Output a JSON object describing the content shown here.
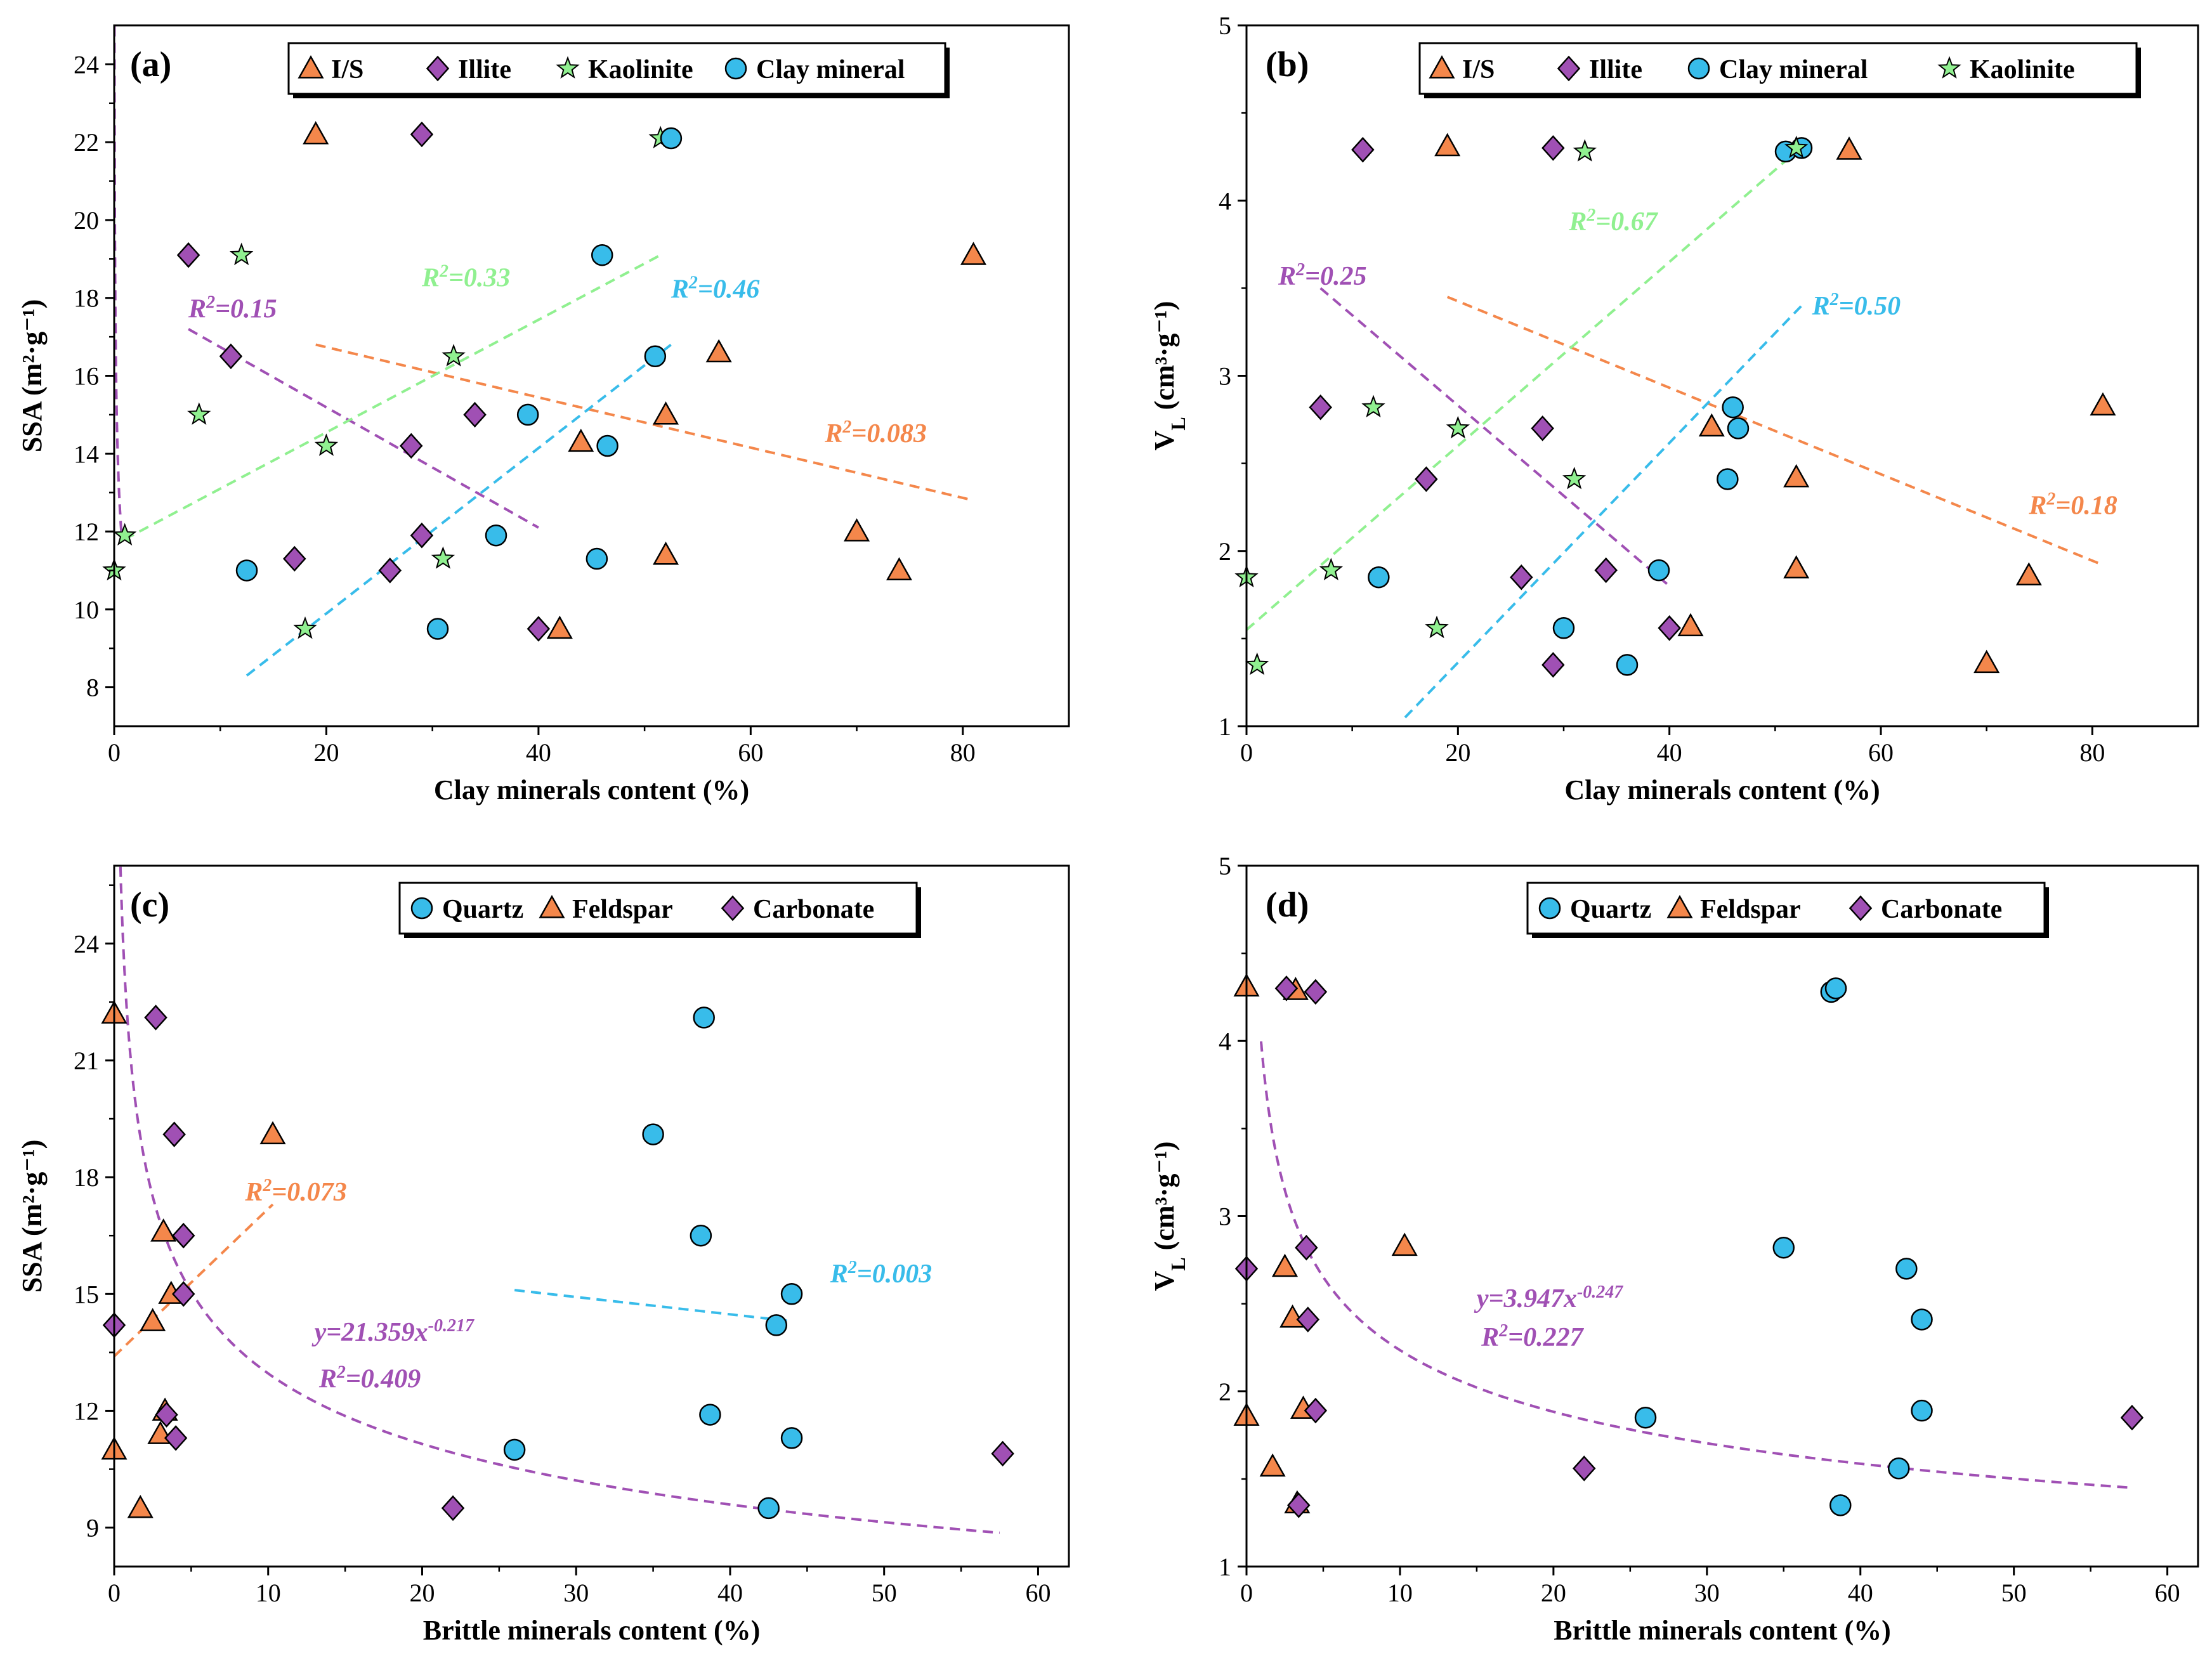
{
  "chart_data": [
    {
      "panel": "(a)",
      "type": "scatter",
      "xlabel": "Clay minerals content (%)",
      "ylabel_main": "SSA",
      "ylabel_unit": "(m²·g⁻¹)",
      "xlim": [
        0,
        90
      ],
      "ylim": [
        7,
        25
      ],
      "xticks": [
        0,
        20,
        40,
        60,
        80
      ],
      "xtick_labels": [
        "0",
        "20",
        "40",
        "60",
        "80"
      ],
      "yticks": [
        8,
        10,
        12,
        14,
        16,
        18,
        20,
        22,
        24
      ],
      "ytick_labels": [
        "8",
        "10",
        "12",
        "14",
        "16",
        "18",
        "20",
        "22",
        "24"
      ],
      "legend": [
        {
          "name": "I/S",
          "marker": "triangle",
          "color": "#f4874b"
        },
        {
          "name": "Illite",
          "marker": "diamond",
          "color": "#a050b4"
        },
        {
          "name": "Kaolinite",
          "marker": "star",
          "color": "#90f090"
        },
        {
          "name": "Clay mineral",
          "marker": "circle",
          "color": "#38bcea"
        }
      ],
      "series": [
        {
          "name": "I/S",
          "marker": "triangle",
          "color": "#f4874b",
          "x": [
            19,
            81,
            52,
            57,
            44,
            70,
            74,
            52,
            42
          ],
          "y": [
            22.2,
            19.1,
            15.0,
            16.6,
            14.3,
            12.0,
            11.0,
            11.4,
            9.5
          ]
        },
        {
          "name": "Illite",
          "marker": "diamond",
          "color": "#a050b4",
          "x": [
            29,
            7,
            11,
            34,
            28,
            29,
            17,
            26,
            40
          ],
          "y": [
            22.2,
            19.1,
            16.5,
            15.0,
            14.2,
            11.9,
            11.3,
            11.0,
            9.5
          ]
        },
        {
          "name": "Kaolinite",
          "marker": "star",
          "color": "#90f090",
          "x": [
            51.5,
            12,
            32,
            8,
            20,
            1,
            31,
            18,
            0
          ],
          "y": [
            22.1,
            19.1,
            16.5,
            15.0,
            14.2,
            11.9,
            11.3,
            9.5,
            11.0
          ]
        },
        {
          "name": "Clay mineral",
          "marker": "circle",
          "color": "#38bcea",
          "x": [
            52.5,
            46,
            51,
            39,
            46.5,
            36,
            45.5,
            12.5,
            30.5
          ],
          "y": [
            22.1,
            19.1,
            16.5,
            15.0,
            14.2,
            11.9,
            11.3,
            11.0,
            9.5
          ]
        }
      ],
      "fits": [
        {
          "kind": "line",
          "color": "#f4874b",
          "x": [
            19,
            81
          ],
          "y": [
            16.8,
            12.8
          ]
        },
        {
          "kind": "line",
          "color": "#a050b4",
          "x": [
            7,
            40
          ],
          "y": [
            17.2,
            12.1
          ]
        },
        {
          "kind": "line",
          "color": "#90f090",
          "x": [
            1,
            51.5
          ],
          "y": [
            11.8,
            19.1
          ]
        },
        {
          "kind": "line",
          "color": "#38bcea",
          "x": [
            12.5,
            52.5
          ],
          "y": [
            8.3,
            16.8
          ]
        },
        {
          "kind": "power",
          "color": "#a050b4",
          "a": 11.0,
          "b": -0.217,
          "x_from": 0.02,
          "x_to": 0.7,
          "y_max": 25
        }
      ],
      "annotations": [
        {
          "pre": "R",
          "sup": "2",
          "post": "=0.15",
          "color": "#a050b4",
          "x": 7,
          "y": 17.5
        },
        {
          "pre": "R",
          "sup": "2",
          "post": "=0.33",
          "color": "#90f090",
          "x": 29,
          "y": 18.3
        },
        {
          "pre": "R",
          "sup": "2",
          "post": "=0.46",
          "color": "#38bcea",
          "x": 52.5,
          "y": 18.0
        },
        {
          "pre": "R",
          "sup": "2",
          "post": "=0.083",
          "color": "#f4874b",
          "x": 67,
          "y": 14.3
        }
      ]
    },
    {
      "panel": "(b)",
      "type": "scatter",
      "xlabel": "Clay minerals content (%)",
      "ylabel_main": "V",
      "ylabel_sub": "L",
      "ylabel_unit": "(cm³·g⁻¹)",
      "xlim": [
        0,
        90
      ],
      "ylim": [
        1,
        5
      ],
      "xticks": [
        0,
        20,
        40,
        60,
        80
      ],
      "xtick_labels": [
        "0",
        "20",
        "40",
        "60",
        "80"
      ],
      "yticks": [
        1,
        2,
        3,
        4,
        5
      ],
      "ytick_labels": [
        "1",
        "2",
        "3",
        "4",
        "5"
      ],
      "legend": [
        {
          "name": "I/S",
          "marker": "triangle",
          "color": "#f4874b"
        },
        {
          "name": "Illite",
          "marker": "diamond",
          "color": "#a050b4"
        },
        {
          "name": "Clay mineral",
          "marker": "circle",
          "color": "#38bcea"
        },
        {
          "name": "Kaolinite",
          "marker": "star",
          "color": "#90f090"
        }
      ],
      "series": [
        {
          "name": "I/S",
          "marker": "triangle",
          "color": "#f4874b",
          "x": [
            19,
            57,
            81,
            44,
            52,
            52,
            74,
            42,
            70
          ],
          "y": [
            4.31,
            4.29,
            2.83,
            2.71,
            2.42,
            1.9,
            1.86,
            1.57,
            1.36
          ]
        },
        {
          "name": "Illite",
          "marker": "diamond",
          "color": "#a050b4",
          "x": [
            11,
            29,
            7,
            28,
            17,
            34,
            26,
            40,
            29
          ],
          "y": [
            4.29,
            4.3,
            2.82,
            2.7,
            2.41,
            1.89,
            1.85,
            1.56,
            1.35
          ]
        },
        {
          "name": "Clay mineral",
          "marker": "circle",
          "color": "#38bcea",
          "x": [
            51,
            52.5,
            46,
            46.5,
            45.5,
            39,
            12.5,
            30,
            36
          ],
          "y": [
            4.28,
            4.3,
            2.82,
            2.7,
            2.41,
            1.89,
            1.85,
            1.56,
            1.35
          ]
        },
        {
          "name": "Kaolinite",
          "marker": "star",
          "color": "#90f090",
          "x": [
            52,
            32,
            12,
            20,
            31,
            8,
            0,
            18,
            1
          ],
          "y": [
            4.3,
            4.28,
            2.82,
            2.7,
            2.41,
            1.89,
            1.85,
            1.56,
            1.35
          ]
        }
      ],
      "fits": [
        {
          "kind": "line",
          "color": "#f4874b",
          "x": [
            19,
            81
          ],
          "y": [
            3.45,
            1.92
          ]
        },
        {
          "kind": "line",
          "color": "#a050b4",
          "x": [
            7,
            40
          ],
          "y": [
            3.5,
            1.8
          ]
        },
        {
          "kind": "line",
          "color": "#90f090",
          "x": [
            0,
            52
          ],
          "y": [
            1.55,
            4.28
          ]
        },
        {
          "kind": "line",
          "color": "#38bcea",
          "x": [
            15,
            52.5
          ],
          "y": [
            1.05,
            3.4
          ]
        }
      ],
      "annotations": [
        {
          "pre": "R",
          "sup": "2",
          "post": "=0.25",
          "color": "#a050b4",
          "x": 3,
          "y": 3.52
        },
        {
          "pre": "R",
          "sup": "2",
          "post": "=0.67",
          "color": "#90f090",
          "x": 30.5,
          "y": 3.83
        },
        {
          "pre": "R",
          "sup": "2",
          "post": "=0.50",
          "color": "#38bcea",
          "x": 53.5,
          "y": 3.35
        },
        {
          "pre": "R",
          "sup": "2",
          "post": "=0.18",
          "color": "#f4874b",
          "x": 74,
          "y": 2.21
        }
      ]
    },
    {
      "panel": "(c)",
      "type": "scatter",
      "xlabel": "Brittle minerals content (%)",
      "ylabel_main": "SSA",
      "ylabel_unit": "(m²·g⁻¹)",
      "xlim": [
        0,
        62
      ],
      "ylim": [
        8,
        26
      ],
      "xticks": [
        0,
        10,
        20,
        30,
        40,
        50,
        60
      ],
      "xtick_labels": [
        "0",
        "10",
        "20",
        "30",
        "40",
        "50",
        "60"
      ],
      "yticks": [
        9,
        12,
        15,
        18,
        21,
        24
      ],
      "ytick_labels": [
        "9",
        "12",
        "15",
        "18",
        "21",
        "24"
      ],
      "legend": [
        {
          "name": "Quartz",
          "marker": "circle",
          "color": "#38bcea"
        },
        {
          "name": "Feldspar",
          "marker": "triangle",
          "color": "#f4874b"
        },
        {
          "name": "Carbonate",
          "marker": "diamond",
          "color": "#a050b4"
        }
      ],
      "series": [
        {
          "name": "Quartz",
          "marker": "circle",
          "color": "#38bcea",
          "x": [
            38.3,
            35,
            38.1,
            44,
            43,
            38.7,
            44,
            26,
            42.5
          ],
          "y": [
            22.1,
            19.1,
            16.5,
            15.0,
            14.2,
            11.9,
            11.3,
            11.0,
            9.5
          ]
        },
        {
          "name": "Feldspar",
          "marker": "triangle",
          "color": "#f4874b",
          "x": [
            0,
            10.3,
            3.2,
            3.7,
            2.5,
            3.3,
            3.0,
            0,
            1.7
          ],
          "y": [
            22.2,
            19.1,
            16.6,
            15.0,
            14.3,
            12.0,
            11.4,
            11.0,
            9.5
          ]
        },
        {
          "name": "Carbonate",
          "marker": "diamond",
          "color": "#a050b4",
          "x": [
            2.7,
            3.9,
            4.5,
            4.5,
            0,
            3.4,
            4.0,
            57.7,
            22
          ],
          "y": [
            22.1,
            19.1,
            16.5,
            15.0,
            14.2,
            11.9,
            11.3,
            10.9,
            9.5
          ]
        }
      ],
      "fits": [
        {
          "kind": "line",
          "color": "#f4874b",
          "x": [
            0,
            10.3
          ],
          "y": [
            13.4,
            17.3
          ]
        },
        {
          "kind": "line",
          "color": "#38bcea",
          "x": [
            26,
            44
          ],
          "y": [
            15.1,
            14.3
          ]
        },
        {
          "kind": "power",
          "color": "#a050b4",
          "a": 21.359,
          "b": -0.217,
          "x_from": 0.12,
          "x_to": 57.5,
          "y_max": 26
        }
      ],
      "annotations": [
        {
          "pre": "R",
          "sup": "2",
          "post": "=0.073",
          "color": "#f4874b",
          "x": 8.5,
          "y": 17.4
        },
        {
          "pre": "R",
          "sup": "2",
          "post": "=0.003",
          "color": "#38bcea",
          "x": 46.5,
          "y": 15.3
        },
        {
          "pre": "y=21.359x",
          "sup": "-0.217",
          "post": "",
          "color": "#a050b4",
          "x": 13,
          "y": 13.8
        },
        {
          "pre": "R",
          "sup": "2",
          "post": "=0.409",
          "color": "#a050b4",
          "x": 13.3,
          "y": 12.6
        }
      ]
    },
    {
      "panel": "(d)",
      "type": "scatter",
      "xlabel": "Brittle  minerals content (%)",
      "ylabel_main": "V",
      "ylabel_sub": "L",
      "ylabel_unit": "(cm³·g⁻¹)",
      "xlim": [
        0,
        62
      ],
      "ylim": [
        1,
        5
      ],
      "xticks": [
        0,
        10,
        20,
        30,
        40,
        50,
        60
      ],
      "xtick_labels": [
        "0",
        "10",
        "20",
        "30",
        "40",
        "50",
        "60"
      ],
      "yticks": [
        1,
        2,
        3,
        4,
        5
      ],
      "ytick_labels": [
        "1",
        "2",
        "3",
        "4",
        "5"
      ],
      "legend": [
        {
          "name": "Quartz",
          "marker": "circle",
          "color": "#38bcea"
        },
        {
          "name": "Feldspar",
          "marker": "triangle",
          "color": "#f4874b"
        },
        {
          "name": "Carbonate",
          "marker": "diamond",
          "color": "#a050b4"
        }
      ],
      "series": [
        {
          "name": "Quartz",
          "marker": "circle",
          "color": "#38bcea",
          "x": [
            38.1,
            38.4,
            35,
            43,
            44,
            44,
            26,
            42.5,
            38.7
          ],
          "y": [
            4.28,
            4.3,
            2.82,
            2.7,
            2.41,
            1.89,
            1.85,
            1.56,
            1.35
          ]
        },
        {
          "name": "Feldspar",
          "marker": "triangle",
          "color": "#f4874b",
          "x": [
            0,
            3.2,
            10.3,
            2.5,
            3.0,
            3.7,
            0,
            1.7,
            3.3
          ],
          "y": [
            4.31,
            4.29,
            2.83,
            2.71,
            2.42,
            1.9,
            1.86,
            1.57,
            1.36
          ]
        },
        {
          "name": "Carbonate",
          "marker": "diamond",
          "color": "#a050b4",
          "x": [
            2.6,
            4.5,
            0,
            3.9,
            4.0,
            4.5,
            57.7,
            22,
            3.4
          ],
          "y": [
            4.3,
            4.28,
            2.7,
            2.82,
            2.41,
            1.89,
            1.85,
            1.56,
            1.35
          ]
        }
      ],
      "fits": [
        {
          "kind": "power",
          "color": "#a050b4",
          "a": 3.947,
          "b": -0.247,
          "x_from": 0.95,
          "x_to": 57.5,
          "y_max": 5
        }
      ],
      "annotations": [
        {
          "pre": "y=3.947x",
          "sup": "-0.247",
          "post": "",
          "color": "#a050b4",
          "x": 15,
          "y": 2.48
        },
        {
          "pre": "R",
          "sup": "2",
          "post": "=0.227",
          "color": "#a050b4",
          "x": 15.3,
          "y": 2.26
        }
      ]
    }
  ]
}
